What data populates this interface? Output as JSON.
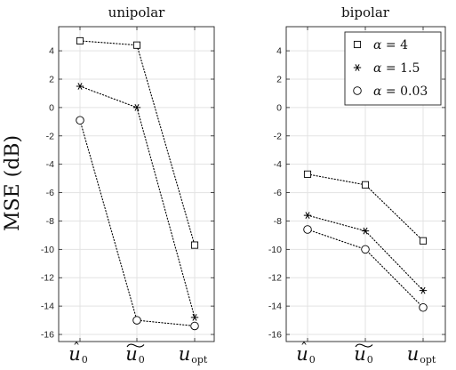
{
  "chart_data": {
    "type": "line",
    "ylabel": "MSE (dB)",
    "ylim": [
      -16.5,
      5.7
    ],
    "yticks": [
      4,
      2,
      0,
      -2,
      -4,
      -6,
      -8,
      -10,
      -12,
      -14,
      -16
    ],
    "categories": [
      {
        "base": "u",
        "accent": "^",
        "sub": "0"
      },
      {
        "base": "u",
        "accent": "~",
        "sub": "0"
      },
      {
        "base": "u",
        "accent": "",
        "sub": "opt"
      }
    ],
    "grid": true,
    "legend": {
      "panel": 1,
      "placement": "top-right",
      "entries": [
        {
          "marker": "square",
          "symbol": "α",
          "value": "= 4"
        },
        {
          "marker": "asterisk",
          "symbol": "α",
          "value": "= 1.5"
        },
        {
          "marker": "circle",
          "symbol": "α",
          "value": "= 0.03"
        }
      ]
    },
    "panels": [
      {
        "title": "unipolar",
        "series": [
          {
            "marker": "square",
            "values": [
              4.7,
              4.4,
              -9.7
            ]
          },
          {
            "marker": "asterisk",
            "values": [
              1.5,
              0.0,
              -14.8
            ]
          },
          {
            "marker": "circle",
            "values": [
              -0.9,
              -15.0,
              -15.4
            ]
          }
        ]
      },
      {
        "title": "bipolar",
        "series": [
          {
            "marker": "square",
            "values": [
              -4.7,
              -5.45,
              -9.4
            ]
          },
          {
            "marker": "asterisk",
            "values": [
              -7.6,
              -8.7,
              -12.9
            ]
          },
          {
            "marker": "circle",
            "values": [
              -8.6,
              -10.0,
              -14.1
            ]
          }
        ]
      }
    ]
  }
}
